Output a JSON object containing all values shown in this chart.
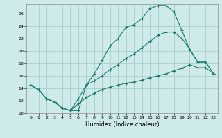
{
  "xlabel": "Humidex (Indice chaleur)",
  "bg_color": "#ceeaea",
  "grid_color": "#aacece",
  "line_color": "#1a7a6e",
  "xlim": [
    -0.5,
    23.5
  ],
  "ylim": [
    10,
    27.5
  ],
  "xticks": [
    0,
    1,
    2,
    3,
    4,
    5,
    6,
    7,
    8,
    9,
    10,
    11,
    12,
    13,
    14,
    15,
    16,
    17,
    18,
    19,
    20,
    21,
    22,
    23
  ],
  "yticks": [
    10,
    12,
    14,
    16,
    18,
    20,
    22,
    24,
    26
  ],
  "curve1_x": [
    0,
    1,
    2,
    3,
    4,
    5,
    6,
    7,
    8,
    9,
    10,
    11,
    12,
    13,
    14,
    15,
    16,
    17,
    18,
    19,
    20,
    21,
    22,
    23
  ],
  "curve1_y": [
    14.5,
    13.8,
    12.3,
    11.8,
    10.8,
    10.4,
    10.4,
    14.5,
    16.3,
    18.5,
    20.8,
    22.0,
    23.8,
    24.2,
    25.2,
    26.8,
    27.3,
    27.3,
    26.3,
    23.3,
    20.2,
    18.2,
    18.2,
    16.3
  ],
  "curve2_x": [
    0,
    1,
    2,
    3,
    4,
    5,
    6,
    7,
    8,
    9,
    10,
    11,
    12,
    13,
    14,
    15,
    16,
    17,
    18,
    19,
    20,
    21,
    22,
    23
  ],
  "curve2_y": [
    14.5,
    13.8,
    12.3,
    11.8,
    10.8,
    10.4,
    12.3,
    14.5,
    15.2,
    16.0,
    17.0,
    17.8,
    18.8,
    19.5,
    20.5,
    21.5,
    22.5,
    23.0,
    23.0,
    22.0,
    20.3,
    18.2,
    18.2,
    16.3
  ],
  "curve3_x": [
    0,
    1,
    2,
    3,
    4,
    5,
    6,
    7,
    8,
    9,
    10,
    11,
    12,
    13,
    14,
    15,
    16,
    17,
    18,
    19,
    20,
    21,
    22,
    23
  ],
  "curve3_y": [
    14.5,
    13.8,
    12.3,
    11.8,
    10.8,
    10.4,
    11.5,
    12.5,
    13.2,
    13.8,
    14.2,
    14.5,
    14.8,
    15.0,
    15.3,
    15.7,
    16.0,
    16.3,
    16.8,
    17.2,
    17.8,
    17.3,
    17.3,
    16.3
  ]
}
